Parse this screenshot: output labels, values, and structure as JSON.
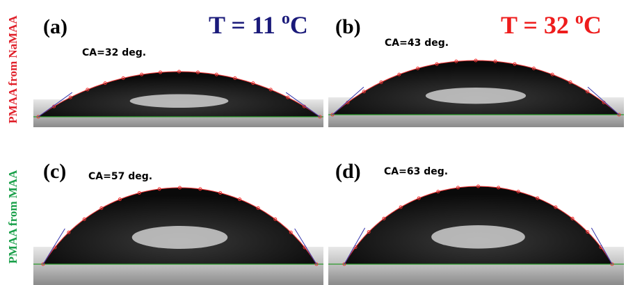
{
  "row_labels": [
    "PMAA from NaMAA",
    "PMAA from MAA"
  ],
  "temperatures": [
    {
      "text": "T = 11 ",
      "sup": "o",
      "unit": "C"
    },
    {
      "text": "T = 32 ",
      "sup": "o",
      "unit": "C"
    }
  ],
  "panels": [
    {
      "label": "(a)",
      "contact_angle": "CA=32 deg."
    },
    {
      "label": "(b)",
      "contact_angle": "CA=43 deg."
    },
    {
      "label": "(c)",
      "contact_angle": "CA=57 deg."
    },
    {
      "label": "(d)",
      "contact_angle": "CA=63 deg."
    }
  ]
}
